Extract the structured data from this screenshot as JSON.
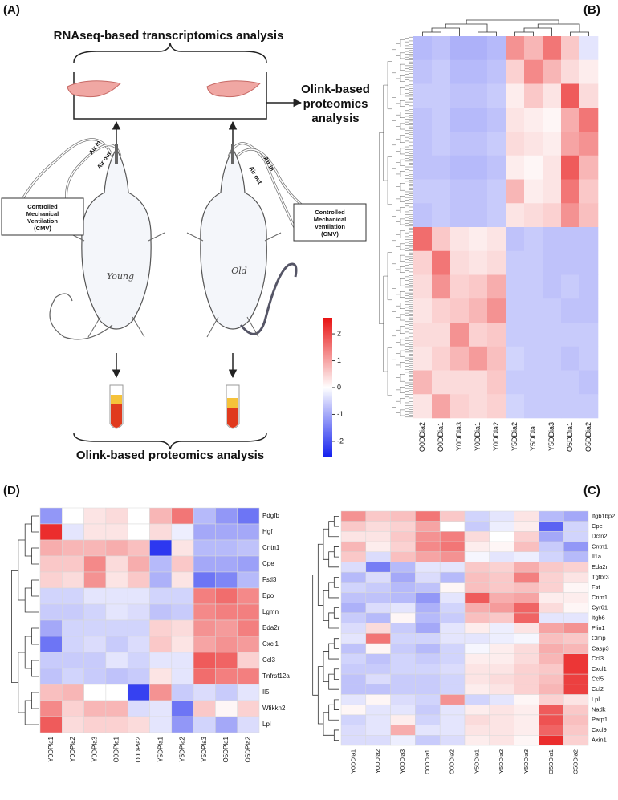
{
  "panel_a": {
    "label": "(A)",
    "top_title": "RNAseq-based transcriptomics analysis",
    "side_title": [
      "Olink-based",
      "proteomics",
      "analysis"
    ],
    "bottom_title": "Olink-based proteomics analysis",
    "cmv": [
      "Controlled",
      "Mechanical",
      "Ventilation",
      "(CMV)"
    ],
    "air_in": "Air in",
    "air_out": "Air out",
    "young": "Young",
    "old": "Old"
  },
  "panel_b": {
    "label": "(B)",
    "columns": [
      "O0DDia2",
      "O0DDia1",
      "Y0DDia3",
      "Y0DDia1",
      "Y0DDia2",
      "Y5DDia2",
      "Y5DDia1",
      "Y5DDia3",
      "O5DDia1",
      "O5DDia2"
    ],
    "values": [
      [
        -0.8,
        -0.7,
        -0.9,
        -0.9,
        -0.8,
        1.2,
        0.8,
        1.5,
        0.6,
        -0.3
      ],
      [
        -0.7,
        -0.6,
        -0.8,
        -0.8,
        -0.7,
        0.5,
        1.3,
        0.8,
        0.4,
        0.2
      ],
      [
        -0.6,
        -0.6,
        -0.7,
        -0.7,
        -0.6,
        0.2,
        0.6,
        0.3,
        1.8,
        0.4
      ],
      [
        -0.7,
        -0.6,
        -0.8,
        -0.8,
        -0.7,
        0.3,
        0.2,
        0.1,
        0.9,
        1.5
      ],
      [
        -0.7,
        -0.6,
        -0.7,
        -0.7,
        -0.6,
        0.4,
        0.3,
        0.2,
        1.0,
        1.2
      ],
      [
        -0.7,
        -0.7,
        -0.8,
        -0.8,
        -0.7,
        0.2,
        0.1,
        0.3,
        1.8,
        0.8
      ],
      [
        -0.6,
        -0.6,
        -0.7,
        -0.7,
        -0.6,
        0.8,
        0.2,
        0.3,
        1.5,
        0.6
      ],
      [
        -0.7,
        -0.6,
        -0.7,
        -0.7,
        -0.6,
        0.3,
        0.4,
        0.5,
        1.2,
        0.7
      ],
      [
        1.6,
        0.6,
        0.3,
        0.2,
        0.3,
        -0.7,
        -0.6,
        -0.7,
        -0.7,
        -0.7
      ],
      [
        0.5,
        1.5,
        0.4,
        0.3,
        0.4,
        -0.6,
        -0.6,
        -0.7,
        -0.7,
        -0.7
      ],
      [
        0.4,
        1.2,
        0.5,
        0.6,
        0.9,
        -0.6,
        -0.6,
        -0.7,
        -0.6,
        -0.7
      ],
      [
        0.3,
        0.5,
        0.6,
        0.8,
        1.2,
        -0.6,
        -0.6,
        -0.6,
        -0.7,
        -0.7
      ],
      [
        0.4,
        0.4,
        1.2,
        0.5,
        0.6,
        -0.6,
        -0.6,
        -0.6,
        -0.6,
        -0.6
      ],
      [
        0.3,
        0.5,
        0.8,
        1.1,
        0.7,
        -0.5,
        -0.6,
        -0.6,
        -0.7,
        -0.6
      ],
      [
        0.8,
        0.4,
        0.4,
        0.4,
        0.6,
        -0.6,
        -0.6,
        -0.6,
        -0.6,
        -0.7
      ],
      [
        0.3,
        1.0,
        0.5,
        0.4,
        0.5,
        -0.5,
        -0.6,
        -0.6,
        -0.6,
        -0.6
      ]
    ]
  },
  "colorbar": {
    "lim": [
      -2.6,
      2.6
    ],
    "ticks": [
      2,
      1,
      0,
      -1,
      -2
    ]
  },
  "panel_c": {
    "label": "(C)",
    "columns": [
      "Y0DDia1",
      "Y0DDia2",
      "Y0DDia3",
      "O0DDia1",
      "O0DDia2",
      "Y5DDia1",
      "Y5DDia2",
      "Y5DDia3",
      "O5DDia1",
      "O5DDia2"
    ],
    "rows": [
      "Itgb1bp2",
      "Cpe",
      "Dctn2",
      "Cntn1",
      "Il1a",
      "Eda2r",
      "Tgfbr3",
      "Fst",
      "Crim1",
      "Cyr61",
      "Itgb6",
      "Plin1",
      "Clmp",
      "Casp3",
      "Ccl3",
      "Cxcl1",
      "Ccl5",
      "Ccl2",
      "Lpl",
      "Nadk",
      "Parp1",
      "Cxcl9",
      "Axin1"
    ],
    "values": [
      [
        1.2,
        0.6,
        0.7,
        1.5,
        0.6,
        -0.5,
        -0.3,
        0.3,
        -0.8,
        -1
      ],
      [
        0.6,
        0.4,
        0.5,
        1,
        0,
        -0.6,
        -0.2,
        0.2,
        -1.8,
        -0.5
      ],
      [
        0.3,
        0.3,
        0.6,
        1.2,
        1.4,
        0.4,
        0,
        0.5,
        -1,
        -0.5
      ],
      [
        0.8,
        0.2,
        0.5,
        1.3,
        1.5,
        0.2,
        0.1,
        0.7,
        -0.6,
        -1.2
      ],
      [
        0.6,
        -0.4,
        0.7,
        1,
        1.2,
        -0.1,
        -0.3,
        -0.2,
        -0.5,
        -0.8
      ],
      [
        -0.4,
        -1.5,
        -0.8,
        -0.3,
        -0.3,
        0.6,
        0.5,
        0.9,
        0.6,
        0.5
      ],
      [
        -0.8,
        -0.4,
        -1,
        -0.4,
        -0.8,
        0.7,
        0.6,
        1.4,
        0.5,
        0.3
      ],
      [
        -0.5,
        -0.6,
        -0.8,
        -0.7,
        0.1,
        0.7,
        0.6,
        0.7,
        0.5,
        0.1
      ],
      [
        -0.7,
        -0.7,
        -0.8,
        -1.2,
        -0.3,
        1.8,
        0.9,
        1,
        0.2,
        0.2
      ],
      [
        -0.9,
        -0.4,
        -0.3,
        -0.9,
        -0.5,
        0.9,
        1.1,
        1.7,
        0.4,
        0.1
      ],
      [
        -0.6,
        -0.8,
        0.1,
        -0.8,
        -0.6,
        0.7,
        0.6,
        1.7,
        -0.3,
        -0.3
      ],
      [
        -0.4,
        0.4,
        -0.6,
        -1,
        -0.3,
        0.2,
        -0.2,
        0.3,
        1,
        1.2
      ],
      [
        -0.3,
        1.5,
        -0.5,
        -0.5,
        -0.3,
        -0.3,
        -0.2,
        -0.1,
        0.7,
        0.6
      ],
      [
        -0.7,
        0.1,
        -0.6,
        -0.8,
        -0.5,
        -0.1,
        0.2,
        0.4,
        0.9,
        0.8
      ],
      [
        -0.5,
        -0.7,
        -0.5,
        -0.6,
        -0.5,
        0.2,
        0.2,
        0.4,
        0.8,
        2.2
      ],
      [
        -0.6,
        -0.6,
        -0.5,
        -0.5,
        -0.4,
        0.3,
        0.3,
        0.5,
        0.6,
        2.2
      ],
      [
        -0.7,
        -0.4,
        -0.6,
        -0.6,
        -0.5,
        0.3,
        0.4,
        0.5,
        0.7,
        2.1
      ],
      [
        -0.7,
        -0.7,
        -0.6,
        -0.6,
        -0.5,
        0.2,
        0.3,
        0.5,
        0.8,
        2.1
      ],
      [
        -0.3,
        0.1,
        -0.4,
        -0.5,
        1.2,
        -0.5,
        -0.3,
        0.1,
        0.5,
        0.3
      ],
      [
        0.1,
        -0.3,
        -0.3,
        -0.6,
        -0.3,
        0.2,
        0.3,
        0.2,
        1.8,
        0.6
      ],
      [
        -0.5,
        -0.3,
        0.2,
        -0.5,
        -0.3,
        0.4,
        0.3,
        0.2,
        1.9,
        0.7
      ],
      [
        -0.4,
        -0.3,
        0.9,
        -0.3,
        -0.3,
        0.3,
        0.3,
        0.2,
        1.7,
        0.6
      ],
      [
        -0.4,
        -0.4,
        -0.2,
        -0.6,
        -0.4,
        0.2,
        0.3,
        0.1,
        2.3,
        0.5
      ]
    ]
  },
  "panel_d": {
    "label": "(D)",
    "columns": [
      "Y0DPla1",
      "Y0DPla2",
      "Y0DPla3",
      "O0DPla1",
      "O0DPla2",
      "Y5DPla1",
      "Y5DPla2",
      "Y5DPla3",
      "O5DPla1",
      "O5DPla2"
    ],
    "rows": [
      "Pdgfb",
      "Hgf",
      "Cntn1",
      "Cpe",
      "Fstl3",
      "Epo",
      "Lgmn",
      "Eda2r",
      "Cxcl1",
      "Ccl3",
      "Tnfrsf12a",
      "Il5",
      "Wfikkn2",
      "Lpl"
    ],
    "values": [
      [
        -1.2,
        0,
        0.3,
        0.4,
        0,
        0.8,
        1.5,
        -0.8,
        -1.2,
        -1.6
      ],
      [
        2.3,
        -0.3,
        0.3,
        0.3,
        0,
        0.4,
        -0.2,
        -1,
        -1,
        -1
      ],
      [
        0.9,
        0.8,
        0.8,
        0.9,
        0.7,
        -2.3,
        0.3,
        -0.8,
        -0.8,
        -0.7
      ],
      [
        0.6,
        0.6,
        1.3,
        0.4,
        0.9,
        -0.8,
        0.6,
        -1,
        -1,
        -1.1
      ],
      [
        0.5,
        0.4,
        1.2,
        0.3,
        0.6,
        -0.9,
        0.3,
        -1.6,
        -1.4,
        -0.8
      ],
      [
        -0.5,
        -0.5,
        -0.3,
        -0.3,
        -0.3,
        -0.5,
        -0.5,
        1.4,
        1.6,
        1.3
      ],
      [
        -0.6,
        -0.6,
        -0.5,
        -0.3,
        -0.4,
        -0.7,
        -0.6,
        1.3,
        1.4,
        1.4
      ],
      [
        -1,
        -0.5,
        -0.5,
        -0.5,
        -0.5,
        0.5,
        0.4,
        1.2,
        1.1,
        1.4
      ],
      [
        -1.6,
        -0.5,
        -0.4,
        -0.6,
        -0.4,
        0.6,
        0.3,
        1,
        1.2,
        1.1
      ],
      [
        -0.6,
        -0.6,
        -0.6,
        -0.3,
        -0.5,
        -0.3,
        -0.3,
        1.8,
        1.7,
        0.5
      ],
      [
        -0.7,
        -0.5,
        -0.6,
        -0.7,
        -0.6,
        0.3,
        -0.3,
        1.6,
        1.4,
        1.4
      ],
      [
        0.7,
        0.8,
        0,
        0,
        -2.2,
        1.2,
        -0.6,
        -0.4,
        -0.6,
        -0.3
      ],
      [
        1.3,
        0.5,
        0.8,
        0.8,
        -0.4,
        -0.3,
        -1.6,
        0.6,
        0.1,
        0.5
      ],
      [
        1.8,
        0.4,
        0.5,
        0.5,
        0.4,
        -0.3,
        -1.2,
        -0.5,
        -1,
        -0.4
      ]
    ]
  }
}
